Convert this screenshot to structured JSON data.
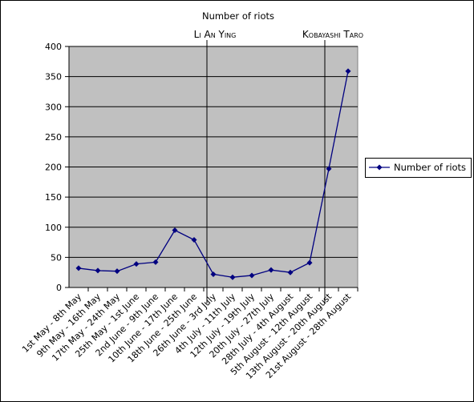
{
  "chart_data": {
    "type": "line",
    "title": "Number of riots",
    "categories": [
      "1st May - 8th May",
      "9th May - 16th May",
      "17th May - 24th May",
      "25th May - 1st June",
      "2nd June - 9th June",
      "10th June - 17th June",
      "18th June - 25th June",
      "26th June - 3rd July",
      "4th July - 11th July",
      "12th July - 19th July",
      "20th July - 27th July",
      "28th July - 4th August",
      "5th August - 12th August",
      "13th August - 20th August",
      "21st August - 28th August"
    ],
    "series": [
      {
        "name": "Number of riots",
        "color": "#000080",
        "values": [
          32,
          28,
          27,
          39,
          42,
          95,
          79,
          22,
          17,
          20,
          29,
          25,
          41,
          197,
          359
        ]
      }
    ],
    "ylim": [
      0,
      400
    ],
    "yticks": [
      0,
      50,
      100,
      150,
      200,
      250,
      300,
      350,
      400
    ],
    "grid": true,
    "annotations": [
      "Li An Ying",
      "Kobayashi Taro"
    ]
  }
}
